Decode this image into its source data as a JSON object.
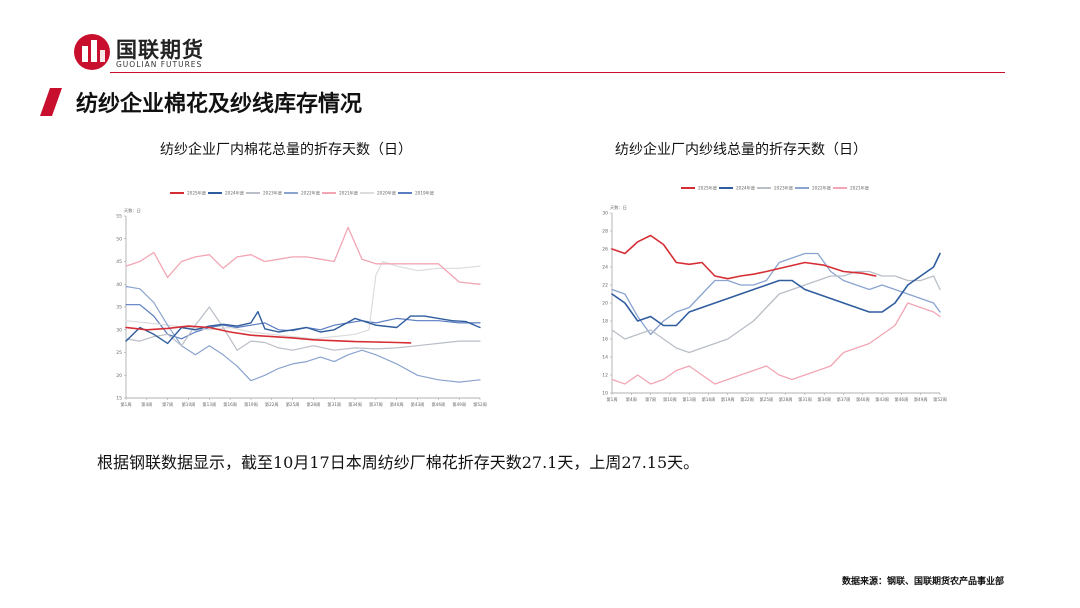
{
  "header": {
    "logo_cn": "国联期货",
    "logo_en": "GUOLIAN FUTURES",
    "brand_color": "#c8102e"
  },
  "page": {
    "title": "纺纱企业棉花及纱线库存情况",
    "description": "根据钢联数据显示，截至10月17日本周纺纱厂棉花折存天数27.1天，上周27.15天。",
    "source": "数据来源：钢联、国联期货农产品事业部"
  },
  "chart_data": [
    {
      "type": "line",
      "title": "纺纱企业厂内棉花总量的折存天数（日）",
      "ylabel": "",
      "unit": "天数：日",
      "ylim": [
        15,
        55
      ],
      "yticks": [
        15,
        20,
        25,
        30,
        35,
        40,
        45,
        50,
        55
      ],
      "x_labels": [
        "第1周",
        "第4周",
        "第7周",
        "第10周",
        "第13周",
        "第16周",
        "第19周",
        "第22周",
        "第25周",
        "第28周",
        "第31周",
        "第34周",
        "第37周",
        "第40周",
        "第43周",
        "第46周",
        "第49周",
        "第52周"
      ],
      "x_range": [
        1,
        52
      ],
      "grid": false,
      "legend_position": "top",
      "series": [
        {
          "name": "2025年度",
          "color": "#d62e35",
          "width": 1.6,
          "x": [
            1,
            4,
            7,
            10,
            13,
            16,
            19,
            22,
            25,
            28,
            31,
            34,
            37,
            40,
            42
          ],
          "y": [
            30.5,
            30,
            30.3,
            30.8,
            30.5,
            29.5,
            28.8,
            28.5,
            28.2,
            27.8,
            27.6,
            27.4,
            27.3,
            27.2,
            27.1
          ]
        },
        {
          "name": "2024年度",
          "color": "#2f5d9e",
          "width": 1.4,
          "x": [
            1,
            3,
            5,
            7,
            9,
            11,
            13,
            15,
            17,
            19,
            20,
            21,
            23,
            25,
            27,
            29,
            31,
            34,
            37,
            40,
            42,
            44,
            46,
            48,
            50,
            52
          ],
          "y": [
            27.5,
            30.5,
            29,
            27,
            30.5,
            30,
            30.8,
            31.2,
            30.8,
            31.5,
            34,
            30.2,
            29.5,
            30,
            30.5,
            29.5,
            30,
            32.5,
            31,
            30.5,
            33,
            33,
            32.5,
            32,
            31.8,
            30.5
          ]
        },
        {
          "name": "2023年度",
          "color": "#b9bec7",
          "width": 1.2,
          "x": [
            1,
            3,
            5,
            7,
            9,
            11,
            13,
            15,
            17,
            19,
            21,
            23,
            25,
            28,
            31,
            34,
            37,
            40,
            43,
            46,
            49,
            52
          ],
          "y": [
            28,
            27.5,
            28.5,
            29,
            26.5,
            31,
            35,
            30.5,
            25.5,
            27.5,
            27.2,
            26,
            25.5,
            26.5,
            25.5,
            26,
            25.8,
            26,
            26.5,
            27,
            27.5,
            27.5
          ]
        },
        {
          "name": "2022年度",
          "color": "#8aa3cf",
          "width": 1.2,
          "x": [
            1,
            3,
            5,
            7,
            9,
            11,
            13,
            15,
            17,
            19,
            21,
            23,
            25,
            27,
            29,
            31,
            33,
            35,
            37,
            40,
            43,
            46,
            49,
            52
          ],
          "y": [
            39.5,
            39,
            36,
            31,
            26.5,
            24.5,
            26.5,
            24.5,
            22,
            18.8,
            20,
            21.5,
            22.5,
            23,
            24,
            23,
            24.5,
            25.5,
            24.5,
            22.5,
            20,
            19,
            18.5,
            19
          ]
        },
        {
          "name": "2021年度",
          "color": "#f2a6b4",
          "width": 1.3,
          "x": [
            1,
            3,
            5,
            7,
            9,
            11,
            13,
            15,
            17,
            19,
            21,
            23,
            25,
            27,
            29,
            31,
            33,
            35,
            37,
            40,
            43,
            46,
            49,
            52
          ],
          "y": [
            44,
            45,
            47,
            41.5,
            45,
            46,
            46.5,
            43.5,
            46,
            46.5,
            45,
            45.5,
            46,
            46,
            45.5,
            45,
            52.5,
            45.5,
            44.5,
            44.5,
            44.5,
            44.5,
            40.5,
            40
          ]
        },
        {
          "name": "2020年度",
          "color": "#dcdcdc",
          "width": 1.2,
          "x": [
            1,
            4,
            7,
            10,
            13,
            16,
            19,
            22,
            25,
            28,
            31,
            34,
            36,
            37,
            38,
            40,
            43,
            46,
            49,
            52
          ],
          "y": [
            32,
            31.5,
            31,
            30.5,
            30,
            30.5,
            29.5,
            29,
            28.5,
            28,
            28.5,
            29,
            30,
            42,
            45,
            44,
            43,
            43.5,
            43.5,
            44
          ]
        },
        {
          "name": "2019年度",
          "color": "#5b7cc0",
          "width": 1.2,
          "x": [
            1,
            3,
            5,
            7,
            9,
            11,
            13,
            15,
            17,
            19,
            21,
            23,
            25,
            27,
            29,
            31,
            33,
            35,
            37,
            40,
            43,
            46,
            49,
            52
          ],
          "y": [
            35.5,
            35.5,
            33,
            29,
            28,
            29.5,
            30.5,
            31,
            30.5,
            31,
            31.5,
            30,
            29.8,
            30.5,
            30,
            31,
            31.5,
            32,
            31.5,
            32.5,
            32,
            32,
            31.5,
            31.5
          ]
        }
      ]
    },
    {
      "type": "line",
      "title": "纺纱企业厂内纱线总量的折存天数（日）",
      "ylabel": "",
      "unit": "天数：日",
      "ylim": [
        10,
        30
      ],
      "yticks": [
        10,
        12,
        14,
        16,
        18,
        20,
        22,
        24,
        26,
        28,
        30
      ],
      "x_labels": [
        "第1周",
        "第4周",
        "第7周",
        "第10周",
        "第13周",
        "第16周",
        "第19周",
        "第22周",
        "第25周",
        "第28周",
        "第31周",
        "第34周",
        "第37周",
        "第40周",
        "第43周",
        "第46周",
        "第49周",
        "第52周"
      ],
      "x_range": [
        1,
        52
      ],
      "grid": false,
      "legend_position": "top",
      "series": [
        {
          "name": "2025年度",
          "color": "#d62e35",
          "width": 1.6,
          "x": [
            1,
            3,
            5,
            7,
            9,
            11,
            13,
            15,
            17,
            19,
            21,
            23,
            25,
            28,
            31,
            34,
            37,
            40,
            42
          ],
          "y": [
            26,
            25.5,
            26.8,
            27.5,
            26.5,
            24.5,
            24.3,
            24.5,
            23,
            22.7,
            23,
            23.2,
            23.5,
            24,
            24.5,
            24.2,
            23.5,
            23.3,
            23
          ]
        },
        {
          "name": "2024年度",
          "color": "#2f5d9e",
          "width": 1.6,
          "x": [
            1,
            3,
            5,
            7,
            9,
            11,
            13,
            15,
            17,
            19,
            21,
            23,
            25,
            27,
            29,
            31,
            33,
            35,
            37,
            39,
            41,
            43,
            45,
            47,
            49,
            51,
            52
          ],
          "y": [
            21,
            20,
            18,
            18.5,
            17.5,
            17.5,
            19,
            19.5,
            20,
            20.5,
            21,
            21.5,
            22,
            22.5,
            22.5,
            21.5,
            21,
            20.5,
            20,
            19.5,
            19,
            19,
            20,
            22,
            23,
            24,
            25.5
          ]
        },
        {
          "name": "2023年度",
          "color": "#b9bec7",
          "width": 1.3,
          "x": [
            1,
            3,
            5,
            7,
            9,
            11,
            13,
            15,
            17,
            19,
            21,
            23,
            25,
            27,
            29,
            31,
            33,
            35,
            37,
            39,
            41,
            43,
            45,
            47,
            49,
            51,
            52
          ],
          "y": [
            17,
            16,
            16.5,
            17,
            16,
            15,
            14.5,
            15,
            15.5,
            16,
            17,
            18,
            19.5,
            21,
            21.5,
            22,
            22.5,
            23,
            23,
            23.5,
            23.5,
            23,
            23,
            22.5,
            22.5,
            23,
            21.5
          ]
        },
        {
          "name": "2022年度",
          "color": "#8aa3cf",
          "width": 1.3,
          "x": [
            1,
            3,
            5,
            7,
            9,
            11,
            13,
            15,
            17,
            19,
            21,
            23,
            25,
            27,
            29,
            31,
            33,
            35,
            37,
            39,
            41,
            43,
            45,
            47,
            49,
            51,
            52
          ],
          "y": [
            21.5,
            21,
            18.5,
            16.5,
            18,
            19,
            19.5,
            21,
            22.5,
            22.5,
            22,
            22,
            22.5,
            24.5,
            25,
            25.5,
            25.5,
            23.5,
            22.5,
            22,
            21.5,
            22,
            21.5,
            21,
            20.5,
            20,
            19
          ]
        },
        {
          "name": "2021年度",
          "color": "#f2a6b4",
          "width": 1.3,
          "x": [
            1,
            3,
            5,
            7,
            9,
            11,
            13,
            15,
            17,
            19,
            21,
            23,
            25,
            27,
            29,
            31,
            33,
            35,
            37,
            39,
            41,
            43,
            45,
            47,
            49,
            51,
            52
          ],
          "y": [
            11.5,
            11,
            12,
            11,
            11.5,
            12.5,
            13,
            12,
            11,
            11.5,
            12,
            12.5,
            13,
            12,
            11.5,
            12,
            12.5,
            13,
            14.5,
            15,
            15.5,
            16.5,
            17.5,
            20,
            19.5,
            19,
            18.5
          ]
        }
      ]
    }
  ]
}
